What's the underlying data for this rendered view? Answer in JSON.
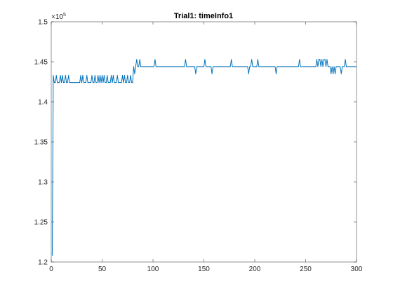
{
  "chart_data": {
    "type": "line",
    "title": "Trial1: timeInfo1",
    "xlabel": "",
    "ylabel": "",
    "xlim": [
      0,
      300
    ],
    "ylim": [
      1.2,
      1.5
    ],
    "y_exponent_label": "×10",
    "y_exponent_power": "5",
    "xticks": [
      0,
      50,
      100,
      150,
      200,
      250,
      300
    ],
    "xtick_labels": [
      "0",
      "50",
      "100",
      "150",
      "200",
      "250",
      "300"
    ],
    "yticks": [
      1.2,
      1.25,
      1.3,
      1.35,
      1.4,
      1.45,
      1.5
    ],
    "ytick_labels": [
      "1.2",
      "1.25",
      "1.3",
      "1.35",
      "1.4",
      "1.45",
      "1.5"
    ],
    "grid": false,
    "series_color": "#0072BD",
    "x": [
      1,
      2,
      3,
      4,
      5,
      6,
      7,
      8,
      9,
      10,
      11,
      12,
      13,
      14,
      15,
      16,
      17,
      18,
      19,
      20,
      21,
      22,
      23,
      24,
      25,
      26,
      27,
      28,
      29,
      30,
      31,
      32,
      33,
      34,
      35,
      36,
      37,
      38,
      39,
      40,
      41,
      42,
      43,
      44,
      45,
      46,
      47,
      48,
      49,
      50,
      51,
      52,
      53,
      54,
      55,
      56,
      57,
      58,
      59,
      60,
      61,
      62,
      63,
      64,
      65,
      66,
      67,
      68,
      69,
      70,
      71,
      72,
      73,
      74,
      75,
      76,
      77,
      78,
      79,
      80,
      81,
      82,
      83,
      84,
      85,
      86,
      87,
      88,
      89,
      90,
      91,
      92,
      93,
      94,
      95,
      96,
      97,
      98,
      99,
      100,
      101,
      102,
      103,
      104,
      105,
      106,
      107,
      108,
      109,
      110,
      111,
      112,
      113,
      114,
      115,
      116,
      117,
      118,
      119,
      120,
      121,
      122,
      123,
      124,
      125,
      126,
      127,
      128,
      129,
      130,
      131,
      132,
      133,
      134,
      135,
      136,
      137,
      138,
      139,
      140,
      141,
      142,
      143,
      144,
      145,
      146,
      147,
      148,
      149,
      150,
      151,
      152,
      153,
      154,
      155,
      156,
      157,
      158,
      159,
      160,
      161,
      162,
      163,
      164,
      165,
      166,
      167,
      168,
      169,
      170,
      171,
      172,
      173,
      174,
      175,
      176,
      177,
      178,
      179,
      180,
      181,
      182,
      183,
      184,
      185,
      186,
      187,
      188,
      189,
      190,
      191,
      192,
      193,
      194,
      195,
      196,
      197,
      198,
      199,
      200,
      201,
      202,
      203,
      204,
      205,
      206,
      207,
      208,
      209,
      210,
      211,
      212,
      213,
      214,
      215,
      216,
      217,
      218,
      219,
      220,
      221,
      222,
      223,
      224,
      225,
      226,
      227,
      228,
      229,
      230,
      231,
      232,
      233,
      234,
      235,
      236,
      237,
      238,
      239,
      240,
      241,
      242,
      243,
      244,
      245,
      246,
      247,
      248,
      249,
      250,
      251,
      252,
      253,
      254,
      255,
      256,
      257,
      258,
      259,
      260,
      261,
      262,
      263,
      264,
      265,
      266,
      267,
      268,
      269,
      270,
      271,
      272,
      273,
      274,
      275,
      276,
      277,
      278,
      279,
      280,
      281,
      282,
      283,
      284,
      285,
      286,
      287,
      288,
      289,
      290,
      291,
      292,
      293,
      294,
      295,
      296,
      297,
      298,
      299,
      300
    ],
    "values": [
      1.208,
      1.433,
      1.424,
      1.424,
      1.433,
      1.424,
      1.424,
      1.424,
      1.433,
      1.424,
      1.433,
      1.424,
      1.424,
      1.433,
      1.424,
      1.424,
      1.433,
      1.424,
      1.424,
      1.424,
      1.424,
      1.424,
      1.424,
      1.424,
      1.424,
      1.424,
      1.424,
      1.424,
      1.433,
      1.424,
      1.433,
      1.424,
      1.424,
      1.424,
      1.433,
      1.424,
      1.424,
      1.424,
      1.424,
      1.433,
      1.424,
      1.424,
      1.433,
      1.424,
      1.424,
      1.433,
      1.424,
      1.433,
      1.424,
      1.433,
      1.424,
      1.433,
      1.424,
      1.424,
      1.433,
      1.424,
      1.424,
      1.424,
      1.433,
      1.424,
      1.433,
      1.424,
      1.424,
      1.424,
      1.433,
      1.424,
      1.424,
      1.424,
      1.424,
      1.433,
      1.424,
      1.433,
      1.424,
      1.424,
      1.433,
      1.424,
      1.424,
      1.433,
      1.424,
      1.424,
      1.444,
      1.435,
      1.444,
      1.453,
      1.444,
      1.444,
      1.453,
      1.444,
      1.444,
      1.444,
      1.444,
      1.444,
      1.444,
      1.444,
      1.444,
      1.444,
      1.444,
      1.444,
      1.444,
      1.444,
      1.444,
      1.453,
      1.444,
      1.444,
      1.444,
      1.444,
      1.444,
      1.444,
      1.444,
      1.444,
      1.444,
      1.444,
      1.444,
      1.444,
      1.444,
      1.444,
      1.444,
      1.444,
      1.444,
      1.444,
      1.444,
      1.444,
      1.444,
      1.444,
      1.444,
      1.444,
      1.444,
      1.444,
      1.444,
      1.444,
      1.444,
      1.453,
      1.444,
      1.444,
      1.444,
      1.444,
      1.444,
      1.444,
      1.444,
      1.444,
      1.444,
      1.435,
      1.444,
      1.444,
      1.444,
      1.444,
      1.444,
      1.444,
      1.444,
      1.444,
      1.453,
      1.444,
      1.444,
      1.444,
      1.444,
      1.444,
      1.444,
      1.435,
      1.444,
      1.444,
      1.444,
      1.444,
      1.444,
      1.444,
      1.444,
      1.444,
      1.444,
      1.444,
      1.444,
      1.444,
      1.444,
      1.444,
      1.444,
      1.444,
      1.444,
      1.444,
      1.453,
      1.444,
      1.444,
      1.444,
      1.444,
      1.444,
      1.444,
      1.444,
      1.444,
      1.444,
      1.444,
      1.444,
      1.444,
      1.444,
      1.444,
      1.444,
      1.444,
      1.435,
      1.444,
      1.444,
      1.453,
      1.444,
      1.444,
      1.444,
      1.444,
      1.444,
      1.453,
      1.444,
      1.444,
      1.444,
      1.444,
      1.444,
      1.444,
      1.444,
      1.444,
      1.444,
      1.444,
      1.444,
      1.444,
      1.444,
      1.444,
      1.444,
      1.444,
      1.444,
      1.435,
      1.444,
      1.444,
      1.444,
      1.444,
      1.444,
      1.444,
      1.444,
      1.444,
      1.444,
      1.444,
      1.444,
      1.444,
      1.444,
      1.444,
      1.444,
      1.444,
      1.444,
      1.444,
      1.444,
      1.444,
      1.444,
      1.444,
      1.453,
      1.444,
      1.444,
      1.444,
      1.444,
      1.444,
      1.444,
      1.444,
      1.444,
      1.444,
      1.444,
      1.444,
      1.444,
      1.444,
      1.444,
      1.444,
      1.444,
      1.453,
      1.444,
      1.453,
      1.453,
      1.444,
      1.453,
      1.444,
      1.453,
      1.453,
      1.444,
      1.453,
      1.444,
      1.444,
      1.444,
      1.435,
      1.444,
      1.435,
      1.444,
      1.435,
      1.444,
      1.444,
      1.444,
      1.444,
      1.444,
      1.435,
      1.444,
      1.444,
      1.444,
      1.453,
      1.444,
      1.444,
      1.444,
      1.444,
      1.444,
      1.444,
      1.444,
      1.444,
      1.444,
      1.444,
      1.444
    ]
  }
}
